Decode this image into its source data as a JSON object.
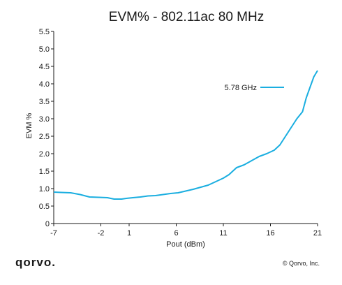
{
  "chart_data": {
    "type": "line",
    "title": "EVM% - 802.11ac 80 MHz",
    "xlabel": "Pout (dBm)",
    "ylabel": "EVM %",
    "xlim": [
      -7,
      21
    ],
    "ylim": [
      0,
      5.5
    ],
    "xticks": [
      -7,
      -2,
      1,
      6,
      11,
      16,
      21
    ],
    "yticks": [
      "0",
      "0.5",
      "1.0",
      "1.5",
      "2.0",
      "2.5",
      "3.0",
      "3.5",
      "4.0",
      "4.5",
      "5.0",
      "5.5"
    ],
    "grid": false,
    "legend_position": "upper-right",
    "series": [
      {
        "name": "5.78 GHz",
        "color": "#1aaee0",
        "x": [
          -7,
          -6.2,
          -5.2,
          -4.2,
          -3.2,
          -2.2,
          -1.3,
          -0.6,
          0.2,
          0.7,
          1.4,
          2.2,
          3.0,
          3.8,
          4.6,
          5.4,
          6.2,
          7.0,
          7.8,
          8.6,
          9.4,
          10.2,
          11.0,
          11.6,
          12.4,
          13.2,
          14.0,
          14.8,
          15.6,
          16.4,
          17.0,
          17.6,
          18.2,
          18.8,
          19.4,
          19.8,
          20.2,
          20.6,
          21.0
        ],
        "y": [
          0.9,
          0.89,
          0.88,
          0.83,
          0.76,
          0.75,
          0.74,
          0.7,
          0.7,
          0.72,
          0.74,
          0.76,
          0.79,
          0.8,
          0.83,
          0.86,
          0.88,
          0.93,
          0.98,
          1.04,
          1.1,
          1.2,
          1.3,
          1.4,
          1.6,
          1.68,
          1.8,
          1.92,
          2.0,
          2.1,
          2.25,
          2.5,
          2.75,
          3.0,
          3.2,
          3.6,
          3.9,
          4.2,
          4.38
        ]
      }
    ]
  },
  "footer": {
    "brand": "qorvo.",
    "copyright": "© Qorvo, Inc."
  }
}
